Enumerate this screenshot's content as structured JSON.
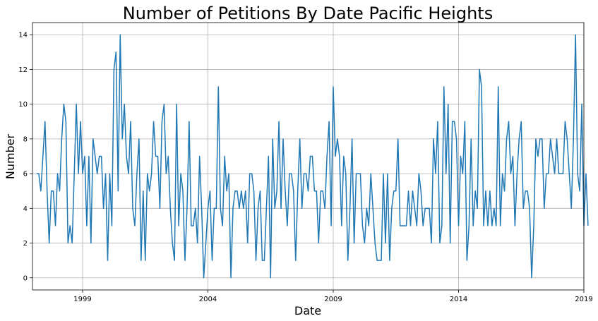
{
  "chart_data": {
    "type": "line",
    "title": "Number of Petitions By Date Pacific Heights",
    "xlabel": "Date",
    "ylabel": "Number",
    "x_tick_labels": [
      "1999",
      "2004",
      "2009",
      "2014",
      "2019"
    ],
    "y_tick_labels": [
      "0",
      "2",
      "4",
      "6",
      "8",
      "10",
      "12",
      "14"
    ],
    "xlim": [
      "1997-01",
      "2019-01"
    ],
    "ylim": [
      -0.7,
      14.7
    ],
    "grid": true,
    "series": [
      {
        "color": "#1f77b4",
        "x_start": "1997-03",
        "frequency": "monthly",
        "values": [
          6,
          6,
          5,
          7,
          9,
          5,
          2,
          5,
          5,
          3,
          6,
          5,
          8,
          10,
          9,
          2,
          3,
          2,
          6,
          10,
          6,
          9,
          6,
          7,
          3,
          7,
          2,
          8,
          7,
          6,
          7,
          7,
          4,
          6,
          1,
          6,
          3,
          12,
          13,
          5,
          14,
          8,
          10,
          7,
          6,
          9,
          4,
          3,
          6,
          8,
          1,
          5,
          1,
          6,
          5,
          6,
          9,
          7,
          7,
          4,
          9,
          10,
          6,
          7,
          4,
          2,
          1,
          10,
          3,
          6,
          5,
          1,
          4,
          9,
          3,
          3,
          4,
          2,
          7,
          4,
          0,
          2,
          4,
          5,
          1,
          4,
          4,
          11,
          4,
          3,
          7,
          5,
          6,
          0,
          4,
          5,
          5,
          4,
          5,
          4,
          5,
          2,
          6,
          6,
          5,
          1,
          4,
          5,
          1,
          1,
          4,
          7,
          0,
          8,
          4,
          5,
          9,
          4,
          8,
          5,
          3,
          6,
          6,
          5,
          1,
          5,
          8,
          4,
          6,
          6,
          5,
          7,
          7,
          5,
          5,
          2,
          5,
          5,
          4,
          7,
          9,
          3,
          11,
          7,
          8,
          7,
          3,
          7,
          6,
          1,
          4,
          8,
          2,
          6,
          6,
          6,
          3,
          2,
          4,
          3,
          6,
          4,
          2,
          1,
          1,
          1,
          6,
          2,
          6,
          1,
          4,
          5,
          5,
          8,
          3,
          3,
          3,
          3,
          5,
          3,
          5,
          4,
          3,
          6,
          5,
          3,
          4,
          4,
          4,
          2,
          8,
          6,
          9,
          2,
          3,
          11,
          6,
          10,
          2,
          9,
          9,
          8,
          3,
          7,
          6,
          9,
          1,
          3,
          8,
          3,
          5,
          4,
          12,
          11,
          3,
          5,
          3,
          5,
          3,
          4,
          3,
          11,
          3,
          6,
          5,
          8,
          9,
          6,
          7,
          3,
          6,
          8,
          9,
          4,
          5,
          5,
          4,
          0,
          3,
          8,
          7,
          8,
          8,
          4,
          6,
          6,
          8,
          7,
          6,
          8,
          6,
          6,
          6,
          9,
          8,
          6,
          4,
          8,
          14,
          6,
          5,
          10,
          3,
          6,
          3
        ]
      }
    ]
  }
}
